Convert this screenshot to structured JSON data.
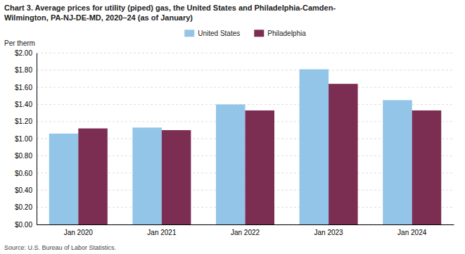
{
  "chart_data": {
    "type": "bar",
    "title": "Chart 3. Average prices for utility (piped) gas, the United States and Philadelphia-Camden-\nWilmington, PA-NJ-DE-MD, 2020–24 (as of January)",
    "ylabel": "Per therm",
    "annotations": [
      "Source: U.S. Bureau of Labor Statistics."
    ],
    "categories": [
      "Jan 2020",
      "Jan 2021",
      "Jan 2022",
      "Jan 2023",
      "Jan 2024"
    ],
    "series": [
      {
        "name": "United States",
        "color": "#92C5E8",
        "values": [
          1.06,
          1.13,
          1.4,
          1.81,
          1.45
        ]
      },
      {
        "name": "Philadelphia",
        "color": "#7B2D52",
        "values": [
          1.12,
          1.1,
          1.33,
          1.64,
          1.33
        ]
      }
    ],
    "ylim": [
      0.0,
      2.0
    ],
    "yticks": [
      {
        "value": 0.0,
        "label": "$0.00"
      },
      {
        "value": 0.2,
        "label": "$0.20"
      },
      {
        "value": 0.4,
        "label": "$0.40"
      },
      {
        "value": 0.6,
        "label": "$0.60"
      },
      {
        "value": 0.8,
        "label": "$0.80"
      },
      {
        "value": 1.0,
        "label": "$1.00"
      },
      {
        "value": 1.2,
        "label": "$1.20"
      },
      {
        "value": 1.4,
        "label": "$1.40"
      },
      {
        "value": 1.6,
        "label": "$1.60"
      },
      {
        "value": 1.8,
        "label": "$1.80"
      },
      {
        "value": 2.0,
        "label": "$2.00"
      }
    ],
    "grid": true,
    "legend": "top"
  }
}
